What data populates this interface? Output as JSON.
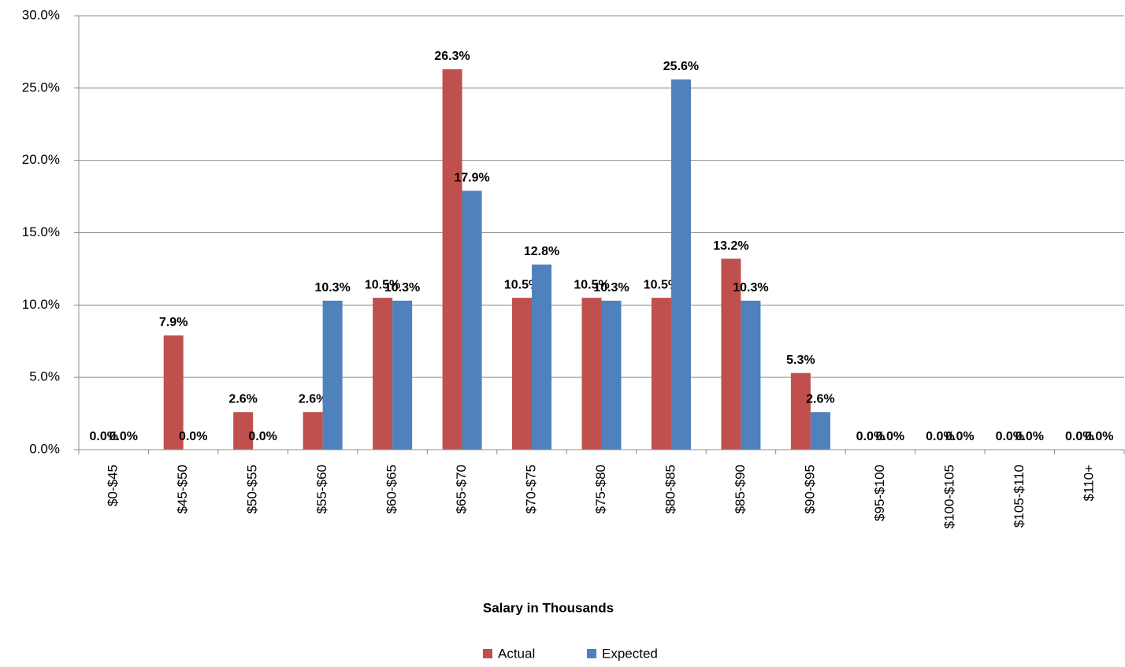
{
  "chart_data": {
    "type": "bar",
    "categories": [
      "$0-$45",
      "$45-$50",
      "$50-$55",
      "$55-$60",
      "$60-$65",
      "$65-$70",
      "$70-$75",
      "$75-$80",
      "$80-$85",
      "$85-$90",
      "$90-$95",
      "$95-$100",
      "$100-$105",
      "$105-$110",
      "$110+"
    ],
    "series": [
      {
        "name": "Actual",
        "color": "#c0504d",
        "values": [
          0,
          7.9,
          2.6,
          2.6,
          10.5,
          26.3,
          10.5,
          10.5,
          10.5,
          13.2,
          5.3,
          0,
          0,
          0,
          0
        ],
        "value_labels": [
          "0.0%",
          "7.9%",
          "2.6%",
          "2.6%",
          "10.5%",
          "26.3%",
          "10.5%",
          "10.5%",
          "10.5%",
          "13.2%",
          "5.3%",
          "0.0%",
          "0.0%",
          "0.0%",
          "0.0%"
        ]
      },
      {
        "name": "Expected",
        "color": "#4f81bd",
        "values": [
          0,
          0,
          0,
          10.3,
          10.3,
          17.9,
          12.8,
          10.3,
          25.6,
          10.3,
          2.6,
          0,
          0,
          0,
          0
        ],
        "value_labels": [
          "0.0%",
          "0.0%",
          "0.0%",
          "10.3%",
          "10.3%",
          "17.9%",
          "12.8%",
          "10.3%",
          "25.6%",
          "10.3%",
          "2.6%",
          "0.0%",
          "0.0%",
          "0.0%",
          "0.0%"
        ]
      }
    ],
    "x_label": "Salary in Thousands",
    "ylim": [
      0,
      30
    ],
    "yticks": [
      {
        "value": 0,
        "label": "0.0%"
      },
      {
        "value": 5,
        "label": "5.0%"
      },
      {
        "value": 10,
        "label": "10.0%"
      },
      {
        "value": 15,
        "label": "15.0%"
      },
      {
        "value": 20,
        "label": "20.0%"
      },
      {
        "value": 25,
        "label": "25.0%"
      },
      {
        "value": 30,
        "label": "30.0%"
      }
    ],
    "grid": true,
    "legend": "bottom"
  }
}
